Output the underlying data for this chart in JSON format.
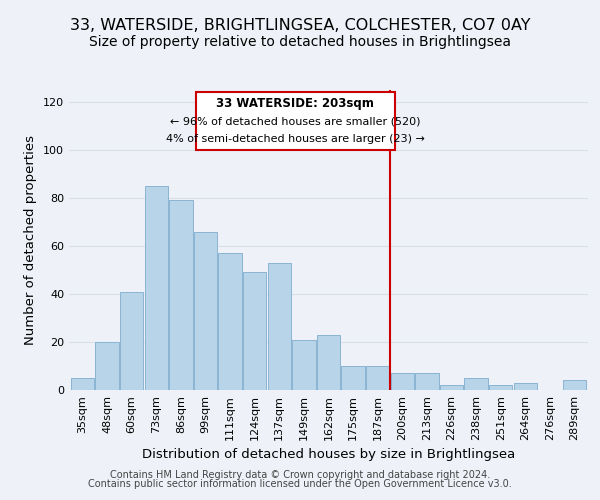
{
  "title": "33, WATERSIDE, BRIGHTLINGSEA, COLCHESTER, CO7 0AY",
  "subtitle": "Size of property relative to detached houses in Brightlingsea",
  "xlabel": "Distribution of detached houses by size in Brightlingsea",
  "ylabel": "Number of detached properties",
  "footer_lines": [
    "Contains HM Land Registry data © Crown copyright and database right 2024.",
    "Contains public sector information licensed under the Open Government Licence v3.0."
  ],
  "bar_labels": [
    "35sqm",
    "48sqm",
    "60sqm",
    "73sqm",
    "86sqm",
    "99sqm",
    "111sqm",
    "124sqm",
    "137sqm",
    "149sqm",
    "162sqm",
    "175sqm",
    "187sqm",
    "200sqm",
    "213sqm",
    "226sqm",
    "238sqm",
    "251sqm",
    "264sqm",
    "276sqm",
    "289sqm"
  ],
  "bar_values": [
    5,
    20,
    41,
    85,
    79,
    66,
    57,
    49,
    53,
    21,
    23,
    10,
    10,
    7,
    7,
    2,
    5,
    2,
    3,
    0,
    4
  ],
  "bar_color": "#b8d4e8",
  "bar_edge_color": "#8ab4d4",
  "vline_x_index": 13,
  "vline_color": "#cc0000",
  "annotation_title": "33 WATERSIDE: 203sqm",
  "annotation_line1": "← 96% of detached houses are smaller (520)",
  "annotation_line2": "4% of semi-detached houses are larger (23) →",
  "annotation_box_color": "#cc0000",
  "ylim": [
    0,
    125
  ],
  "yticks": [
    0,
    20,
    40,
    60,
    80,
    100,
    120
  ],
  "background_color": "#eef2f8",
  "plot_bg_color": "#eef2f8",
  "grid_color": "#d8dde8",
  "title_fontsize": 11.5,
  "subtitle_fontsize": 10,
  "axis_label_fontsize": 9.5,
  "tick_fontsize": 8,
  "footer_fontsize": 7
}
